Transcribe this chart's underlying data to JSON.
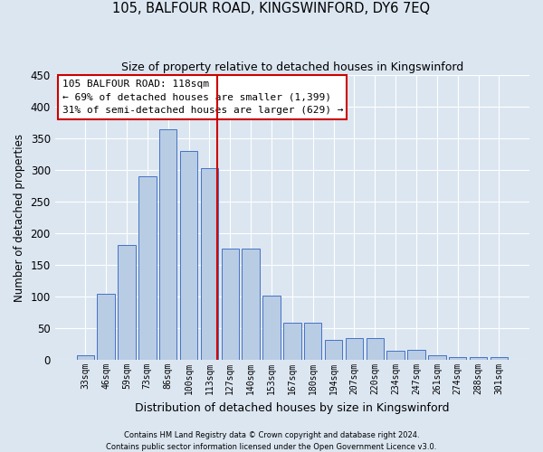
{
  "title1": "105, BALFOUR ROAD, KINGSWINFORD, DY6 7EQ",
  "title2": "Size of property relative to detached houses in Kingswinford",
  "xlabel": "Distribution of detached houses by size in Kingswinford",
  "ylabel": "Number of detached properties",
  "categories": [
    "33sqm",
    "46sqm",
    "59sqm",
    "73sqm",
    "86sqm",
    "100sqm",
    "113sqm",
    "127sqm",
    "140sqm",
    "153sqm",
    "167sqm",
    "180sqm",
    "194sqm",
    "207sqm",
    "220sqm",
    "234sqm",
    "247sqm",
    "261sqm",
    "274sqm",
    "288sqm",
    "301sqm"
  ],
  "values": [
    8,
    104,
    181,
    290,
    365,
    330,
    303,
    176,
    176,
    101,
    59,
    59,
    32,
    35,
    35,
    14,
    16,
    7,
    5,
    5,
    4
  ],
  "bar_color": "#b8cce4",
  "bar_edge_color": "#4472c4",
  "background_color": "#dce6f1",
  "grid_color": "#ffffff",
  "vline_x": 6.38,
  "vline_color": "#cc0000",
  "annotation_text1": "105 BALFOUR ROAD: 118sqm",
  "annotation_text2": "← 69% of detached houses are smaller (1,399)",
  "annotation_text3": "31% of semi-detached houses are larger (629) →",
  "annotation_box_color": "#ffffff",
  "annotation_box_edge": "#cc0000",
  "footer1": "Contains HM Land Registry data © Crown copyright and database right 2024.",
  "footer2": "Contains public sector information licensed under the Open Government Licence v3.0.",
  "ylim": [
    0,
    450
  ],
  "yticks": [
    0,
    50,
    100,
    150,
    200,
    250,
    300,
    350,
    400,
    450
  ]
}
